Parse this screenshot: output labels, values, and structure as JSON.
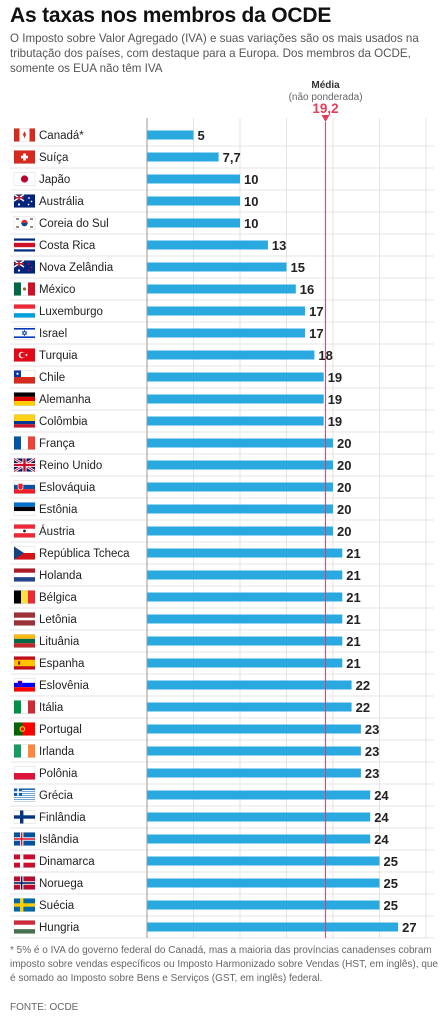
{
  "title": "As taxas nos membros da OCDE",
  "subtitle": "O Imposto sobre Valor Agregado (IVA) e suas variações são os mais usados na tributação dos países, com destaque para a Europa. Dos membros da OCDE, somente os EUA não têm IVA",
  "footnote": "* 5% é o IVA do governo federal do Canadá, mas a maioria das províncias canadenses cobram imposto sobre vendas específicos ou Imposto Harmonizado sobre Vendas (HST, em inglês), que é somado ao Imposto sobre Bens e Serviços (GST, em inglês) federal.",
  "source": "FONTE: OCDE",
  "colors": {
    "bar": "#29a9e0",
    "average": "#e23d5a",
    "grid": "#e4e4e4",
    "row_line": "#dcdcdc",
    "axis": "#999999"
  },
  "chart_data": {
    "type": "bar",
    "orientation": "horizontal",
    "categories": [
      "Canadá*",
      "Suíça",
      "Japão",
      "Austrália",
      "Coreia do Sul",
      "Costa Rica",
      "Nova Zelândia",
      "México",
      "Luxemburgo",
      "Israel",
      "Turquia",
      "Chile",
      "Alemanha",
      "Colômbia",
      "França",
      "Reino Unido",
      "Eslováquia",
      "Estônia",
      "Áustria",
      "República Tcheca",
      "Holanda",
      "Bélgica",
      "Letônia",
      "Lituânia",
      "Espanha",
      "Eslovênia",
      "Itália",
      "Portugal",
      "Irlanda",
      "Polônia",
      "Grécia",
      "Finlândia",
      "Islândia",
      "Dinamarca",
      "Noruega",
      "Suécia",
      "Hungria"
    ],
    "values": [
      5,
      7.7,
      10,
      10,
      10,
      13,
      15,
      16,
      17,
      17,
      18,
      19,
      19,
      19,
      20,
      20,
      20,
      20,
      20,
      21,
      21,
      21,
      21,
      21,
      21,
      22,
      22,
      23,
      23,
      23,
      24,
      24,
      24,
      25,
      25,
      25,
      27
    ],
    "value_labels": [
      "5",
      "7,7",
      "10",
      "10",
      "10",
      "13",
      "15",
      "16",
      "17",
      "17",
      "18",
      "19",
      "19",
      "19",
      "20",
      "20",
      "20",
      "20",
      "20",
      "21",
      "21",
      "21",
      "21",
      "21",
      "21",
      "22",
      "22",
      "23",
      "23",
      "23",
      "24",
      "24",
      "24",
      "25",
      "25",
      "25",
      "27"
    ],
    "flag_icons": [
      "flag-canada-icon",
      "flag-switzerland-icon",
      "flag-japan-icon",
      "flag-australia-icon",
      "flag-south-korea-icon",
      "flag-costa-rica-icon",
      "flag-new-zealand-icon",
      "flag-mexico-icon",
      "flag-luxembourg-icon",
      "flag-israel-icon",
      "flag-turkey-icon",
      "flag-chile-icon",
      "flag-germany-icon",
      "flag-colombia-icon",
      "flag-france-icon",
      "flag-united-kingdom-icon",
      "flag-slovakia-icon",
      "flag-estonia-icon",
      "flag-austria-icon",
      "flag-czech-republic-icon",
      "flag-netherlands-icon",
      "flag-belgium-icon",
      "flag-latvia-icon",
      "flag-lithuania-icon",
      "flag-spain-icon",
      "flag-slovenia-icon",
      "flag-italy-icon",
      "flag-portugal-icon",
      "flag-ireland-icon",
      "flag-poland-icon",
      "flag-greece-icon",
      "flag-finland-icon",
      "flag-iceland-icon",
      "flag-denmark-icon",
      "flag-norway-icon",
      "flag-sweden-icon",
      "flag-hungary-icon"
    ],
    "xlim": [
      0,
      30
    ],
    "xticks": [
      0,
      5,
      10,
      15,
      20,
      25,
      30
    ],
    "average": {
      "title": "Média",
      "note": "(não ponderada)",
      "value": 19.2,
      "value_label": "19,2"
    },
    "grid": true,
    "legend": "none"
  }
}
